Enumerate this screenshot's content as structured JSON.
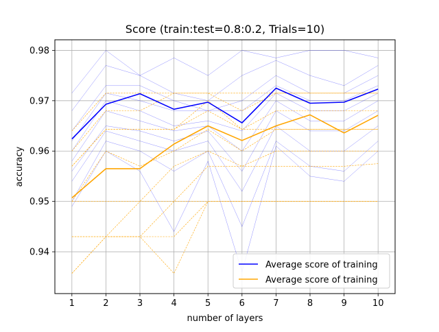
{
  "chart_data": {
    "type": "line",
    "title": "Score (train:test=0.8:0.2, Trials=10)",
    "xlabel": "number of layers",
    "ylabel": "accuracy",
    "x": [
      1,
      2,
      3,
      4,
      5,
      6,
      7,
      8,
      9,
      10
    ],
    "xlim": [
      0.5,
      10.5
    ],
    "ylim": [
      0.9317,
      0.9821
    ],
    "yticks": [
      0.94,
      0.95,
      0.96,
      0.97,
      0.98
    ],
    "ytick_labels": [
      "0.94",
      "0.95",
      "0.96",
      "0.97",
      "0.98"
    ],
    "xtick_labels": [
      "1",
      "2",
      "3",
      "4",
      "5",
      "6",
      "7",
      "8",
      "9",
      "10"
    ],
    "grid": true,
    "legend_position": "lower-right",
    "colors": {
      "blue": "#0000ff",
      "orange": "#ffa500",
      "grid": "#b0b0b0"
    },
    "series": [
      {
        "name": "Average score of training",
        "color": "#0000ff",
        "values": [
          0.9624,
          0.9693,
          0.9714,
          0.9683,
          0.9697,
          0.9656,
          0.9725,
          0.9695,
          0.9697,
          0.9723
        ]
      },
      {
        "name": "Average score of training",
        "color": "#ffa500",
        "values": [
          0.9507,
          0.9565,
          0.9565,
          0.9614,
          0.965,
          0.9621,
          0.965,
          0.9672,
          0.9636,
          0.9671
        ]
      }
    ],
    "trials_blue": [
      [
        0.9715,
        0.98,
        0.975,
        0.9785,
        0.975,
        0.98,
        0.9785,
        0.98,
        0.98,
        0.9785
      ],
      [
        0.968,
        0.977,
        0.975,
        0.9715,
        0.97,
        0.975,
        0.978,
        0.975,
        0.973,
        0.977
      ],
      [
        0.964,
        0.973,
        0.973,
        0.97,
        0.968,
        0.97,
        0.975,
        0.9715,
        0.9715,
        0.975
      ],
      [
        0.962,
        0.9715,
        0.97,
        0.968,
        0.968,
        0.968,
        0.973,
        0.97,
        0.97,
        0.973
      ],
      [
        0.96,
        0.97,
        0.968,
        0.965,
        0.966,
        0.964,
        0.9715,
        0.968,
        0.968,
        0.9715
      ],
      [
        0.958,
        0.968,
        0.966,
        0.964,
        0.965,
        0.96,
        0.97,
        0.966,
        0.966,
        0.97
      ],
      [
        0.956,
        0.965,
        0.964,
        0.962,
        0.964,
        0.956,
        0.968,
        0.964,
        0.964,
        0.968
      ],
      [
        0.954,
        0.964,
        0.962,
        0.96,
        0.962,
        0.952,
        0.965,
        0.96,
        0.96,
        0.965
      ],
      [
        0.95,
        0.962,
        0.96,
        0.956,
        0.96,
        0.945,
        0.962,
        0.957,
        0.956,
        0.962
      ],
      [
        0.949,
        0.96,
        0.956,
        0.944,
        0.958,
        0.936,
        0.961,
        0.955,
        0.954,
        0.96
      ]
    ],
    "trials_orange": [
      [
        0.964,
        0.9715,
        0.9715,
        0.9715,
        0.9715,
        0.9715,
        0.9715,
        0.9715,
        0.9715,
        0.9715
      ],
      [
        0.96,
        0.968,
        0.968,
        0.9715,
        0.9715,
        0.968,
        0.9715,
        0.9715,
        0.9715,
        0.9715
      ],
      [
        0.957,
        0.9643,
        0.9643,
        0.9643,
        0.97,
        0.9643,
        0.968,
        0.968,
        0.968,
        0.968
      ],
      [
        0.957,
        0.9643,
        0.9643,
        0.9643,
        0.968,
        0.9643,
        0.9643,
        0.9643,
        0.9643,
        0.9643
      ],
      [
        0.95,
        0.96,
        0.957,
        0.96,
        0.9643,
        0.96,
        0.9643,
        0.9643,
        0.9643,
        0.9643
      ],
      [
        0.95,
        0.95,
        0.95,
        0.957,
        0.96,
        0.957,
        0.96,
        0.96,
        0.96,
        0.96
      ],
      [
        0.943,
        0.943,
        0.95,
        0.95,
        0.957,
        0.957,
        0.957,
        0.957,
        0.957,
        0.9575
      ],
      [
        0.943,
        0.943,
        0.943,
        0.95,
        0.95,
        0.95,
        0.95,
        0.95,
        0.95,
        0.95
      ],
      [
        0.9357,
        0.943,
        0.943,
        0.943,
        0.95,
        0.95,
        0.95,
        0.95,
        0.95,
        0.95
      ],
      [
        0.9357,
        0.943,
        0.943,
        0.9357,
        0.95,
        0.95,
        0.95,
        0.95,
        0.95,
        0.95
      ]
    ]
  }
}
